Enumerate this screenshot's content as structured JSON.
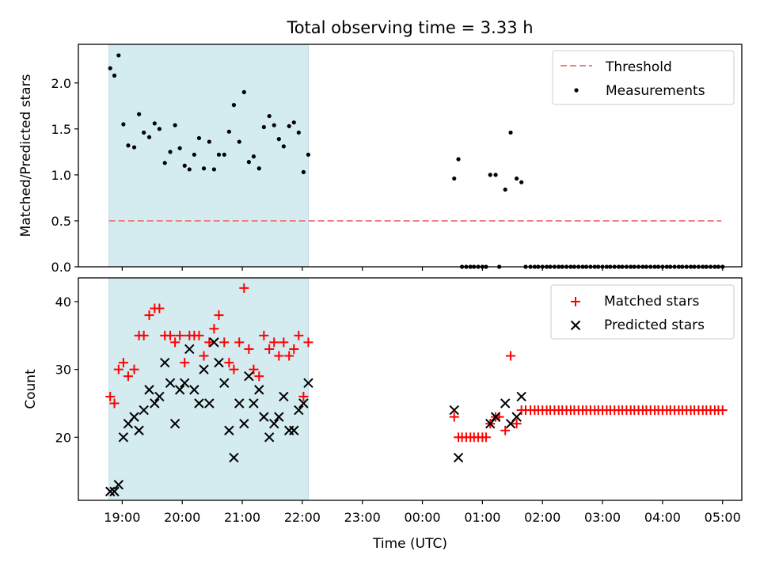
{
  "chart_data": [
    {
      "type": "scatter",
      "title": "Total observing time = 3.33 h",
      "xlabel": "",
      "ylabel": "Matched/Predicted stars",
      "x_unit": "hours since 19:00 UTC",
      "xlim": [
        -0.73,
        10.32
      ],
      "ylim": [
        0.0,
        2.42
      ],
      "yticks": [
        0.0,
        0.5,
        1.0,
        1.5,
        2.0
      ],
      "ytick_labels": [
        "0.0",
        "0.5",
        "1.0",
        "1.5",
        "2.0"
      ],
      "shaded_span": [
        -0.22,
        3.1
      ],
      "shaded_color": "#d4ebf0",
      "legend": {
        "placement": "top-right",
        "entries": [
          "Threshold",
          "Measurements"
        ]
      },
      "threshold": {
        "name": "Threshold",
        "value": 0.5,
        "x_range": [
          -0.22,
          9.98
        ],
        "color": "#f08080"
      },
      "series": [
        {
          "name": "Measurements",
          "color": "#000000",
          "points": [
            [
              -0.2,
              2.16
            ],
            [
              -0.13,
              2.08
            ],
            [
              -0.06,
              2.3
            ],
            [
              0.02,
              1.55
            ],
            [
              0.1,
              1.32
            ],
            [
              0.2,
              1.3
            ],
            [
              0.28,
              1.66
            ],
            [
              0.36,
              1.46
            ],
            [
              0.45,
              1.41
            ],
            [
              0.54,
              1.56
            ],
            [
              0.62,
              1.5
            ],
            [
              0.71,
              1.13
            ],
            [
              0.8,
              1.25
            ],
            [
              0.88,
              1.54
            ],
            [
              0.96,
              1.29
            ],
            [
              1.04,
              1.1
            ],
            [
              1.12,
              1.06
            ],
            [
              1.2,
              1.22
            ],
            [
              1.28,
              1.4
            ],
            [
              1.36,
              1.07
            ],
            [
              1.45,
              1.36
            ],
            [
              1.53,
              1.06
            ],
            [
              1.61,
              1.22
            ],
            [
              1.7,
              1.22
            ],
            [
              1.78,
              1.47
            ],
            [
              1.86,
              1.76
            ],
            [
              1.95,
              1.36
            ],
            [
              2.03,
              1.9
            ],
            [
              2.11,
              1.14
            ],
            [
              2.19,
              1.2
            ],
            [
              2.28,
              1.07
            ],
            [
              2.36,
              1.52
            ],
            [
              2.45,
              1.64
            ],
            [
              2.53,
              1.54
            ],
            [
              2.61,
              1.39
            ],
            [
              2.69,
              1.31
            ],
            [
              2.78,
              1.53
            ],
            [
              2.86,
              1.57
            ],
            [
              2.94,
              1.46
            ],
            [
              3.02,
              1.03
            ],
            [
              3.1,
              1.22
            ],
            [
              5.53,
              0.96
            ],
            [
              5.6,
              1.17
            ],
            [
              5.66,
              0.0
            ],
            [
              5.73,
              0.0
            ],
            [
              5.8,
              0.0
            ],
            [
              5.86,
              0.0
            ],
            [
              5.93,
              0.0
            ],
            [
              6.0,
              0.0
            ],
            [
              6.06,
              0.0
            ],
            [
              6.13,
              1.0
            ],
            [
              6.22,
              1.0
            ],
            [
              6.28,
              0.0
            ],
            [
              6.38,
              0.84
            ],
            [
              6.47,
              1.46
            ],
            [
              6.57,
              0.96
            ],
            [
              6.65,
              0.92
            ],
            [
              6.72,
              0.0
            ],
            [
              6.8,
              0.0
            ],
            [
              6.87,
              0.0
            ],
            [
              6.93,
              0.0
            ],
            [
              7.0,
              0.0
            ],
            [
              7.07,
              0.0
            ],
            [
              7.13,
              0.0
            ],
            [
              7.2,
              0.0
            ],
            [
              7.27,
              0.0
            ],
            [
              7.33,
              0.0
            ],
            [
              7.4,
              0.0
            ],
            [
              7.47,
              0.0
            ],
            [
              7.53,
              0.0
            ],
            [
              7.6,
              0.0
            ],
            [
              7.67,
              0.0
            ],
            [
              7.73,
              0.0
            ],
            [
              7.8,
              0.0
            ],
            [
              7.87,
              0.0
            ],
            [
              7.93,
              0.0
            ],
            [
              8.0,
              0.0
            ],
            [
              8.07,
              0.0
            ],
            [
              8.13,
              0.0
            ],
            [
              8.2,
              0.0
            ],
            [
              8.27,
              0.0
            ],
            [
              8.33,
              0.0
            ],
            [
              8.4,
              0.0
            ],
            [
              8.47,
              0.0
            ],
            [
              8.53,
              0.0
            ],
            [
              8.6,
              0.0
            ],
            [
              8.67,
              0.0
            ],
            [
              8.73,
              0.0
            ],
            [
              8.8,
              0.0
            ],
            [
              8.87,
              0.0
            ],
            [
              8.93,
              0.0
            ],
            [
              9.0,
              0.0
            ],
            [
              9.07,
              0.0
            ],
            [
              9.13,
              0.0
            ],
            [
              9.2,
              0.0
            ],
            [
              9.27,
              0.0
            ],
            [
              9.33,
              0.0
            ],
            [
              9.4,
              0.0
            ],
            [
              9.47,
              0.0
            ],
            [
              9.53,
              0.0
            ],
            [
              9.6,
              0.0
            ],
            [
              9.67,
              0.0
            ],
            [
              9.73,
              0.0
            ],
            [
              9.8,
              0.0
            ],
            [
              9.87,
              0.0
            ],
            [
              9.93,
              0.0
            ],
            [
              10.0,
              0.0
            ]
          ]
        }
      ]
    },
    {
      "type": "scatter",
      "title": "",
      "xlabel": "Time (UTC)",
      "ylabel": "Count",
      "x_unit": "hours since 19:00 UTC",
      "xlim": [
        -0.73,
        10.32
      ],
      "ylim": [
        10.7,
        43.5
      ],
      "yticks": [
        20,
        30,
        40
      ],
      "ytick_labels": [
        "20",
        "30",
        "40"
      ],
      "xticks": [
        0,
        1,
        2,
        3,
        4,
        5,
        6,
        7,
        8,
        9,
        10
      ],
      "xtick_labels": [
        "19:00",
        "20:00",
        "21:00",
        "22:00",
        "23:00",
        "00:00",
        "01:00",
        "02:00",
        "03:00",
        "04:00",
        "05:00"
      ],
      "shaded_span": [
        -0.22,
        3.1
      ],
      "shaded_color": "#d4ebf0",
      "legend": {
        "placement": "top-right",
        "entries": [
          "Matched stars",
          "Predicted stars"
        ]
      },
      "series": [
        {
          "name": "Matched stars",
          "marker": "plus",
          "color": "#ff0000",
          "points": [
            [
              -0.2,
              26
            ],
            [
              -0.13,
              25
            ],
            [
              -0.06,
              30
            ],
            [
              0.02,
              31
            ],
            [
              0.1,
              29
            ],
            [
              0.2,
              30
            ],
            [
              0.28,
              35
            ],
            [
              0.36,
              35
            ],
            [
              0.45,
              38
            ],
            [
              0.54,
              39
            ],
            [
              0.62,
              39
            ],
            [
              0.71,
              35
            ],
            [
              0.8,
              35
            ],
            [
              0.88,
              34
            ],
            [
              0.96,
              35
            ],
            [
              1.04,
              31
            ],
            [
              1.12,
              35
            ],
            [
              1.2,
              35
            ],
            [
              1.28,
              35
            ],
            [
              1.36,
              32
            ],
            [
              1.45,
              34
            ],
            [
              1.53,
              36
            ],
            [
              1.61,
              38
            ],
            [
              1.7,
              34
            ],
            [
              1.78,
              31
            ],
            [
              1.86,
              30
            ],
            [
              1.95,
              34
            ],
            [
              2.03,
              42
            ],
            [
              2.11,
              33
            ],
            [
              2.19,
              30
            ],
            [
              2.28,
              29
            ],
            [
              2.36,
              35
            ],
            [
              2.45,
              33
            ],
            [
              2.53,
              34
            ],
            [
              2.61,
              32
            ],
            [
              2.69,
              34
            ],
            [
              2.78,
              32
            ],
            [
              2.86,
              33
            ],
            [
              2.94,
              35
            ],
            [
              3.02,
              26
            ],
            [
              3.1,
              34
            ],
            [
              5.53,
              23
            ],
            [
              5.6,
              20
            ],
            [
              5.66,
              20
            ],
            [
              5.73,
              20
            ],
            [
              5.8,
              20
            ],
            [
              5.86,
              20
            ],
            [
              5.93,
              20
            ],
            [
              6.0,
              20
            ],
            [
              6.06,
              20
            ],
            [
              6.13,
              22
            ],
            [
              6.22,
              23
            ],
            [
              6.28,
              23
            ],
            [
              6.38,
              21
            ],
            [
              6.47,
              32
            ],
            [
              6.57,
              22
            ],
            [
              6.65,
              24
            ],
            [
              6.72,
              24
            ],
            [
              6.8,
              24
            ],
            [
              6.87,
              24
            ],
            [
              6.93,
              24
            ],
            [
              7.0,
              24
            ],
            [
              7.07,
              24
            ],
            [
              7.13,
              24
            ],
            [
              7.2,
              24
            ],
            [
              7.27,
              24
            ],
            [
              7.33,
              24
            ],
            [
              7.4,
              24
            ],
            [
              7.47,
              24
            ],
            [
              7.53,
              24
            ],
            [
              7.6,
              24
            ],
            [
              7.67,
              24
            ],
            [
              7.73,
              24
            ],
            [
              7.8,
              24
            ],
            [
              7.87,
              24
            ],
            [
              7.93,
              24
            ],
            [
              8.0,
              24
            ],
            [
              8.07,
              24
            ],
            [
              8.13,
              24
            ],
            [
              8.2,
              24
            ],
            [
              8.27,
              24
            ],
            [
              8.33,
              24
            ],
            [
              8.4,
              24
            ],
            [
              8.47,
              24
            ],
            [
              8.53,
              24
            ],
            [
              8.6,
              24
            ],
            [
              8.67,
              24
            ],
            [
              8.73,
              24
            ],
            [
              8.8,
              24
            ],
            [
              8.87,
              24
            ],
            [
              8.93,
              24
            ],
            [
              9.0,
              24
            ],
            [
              9.07,
              24
            ],
            [
              9.13,
              24
            ],
            [
              9.2,
              24
            ],
            [
              9.27,
              24
            ],
            [
              9.33,
              24
            ],
            [
              9.4,
              24
            ],
            [
              9.47,
              24
            ],
            [
              9.53,
              24
            ],
            [
              9.6,
              24
            ],
            [
              9.67,
              24
            ],
            [
              9.73,
              24
            ],
            [
              9.8,
              24
            ],
            [
              9.87,
              24
            ],
            [
              9.93,
              24
            ],
            [
              10.0,
              24
            ]
          ]
        },
        {
          "name": "Predicted stars",
          "marker": "x",
          "color": "#000000",
          "points": [
            [
              -0.2,
              12
            ],
            [
              -0.13,
              12
            ],
            [
              -0.06,
              13
            ],
            [
              0.02,
              20
            ],
            [
              0.1,
              22
            ],
            [
              0.2,
              23
            ],
            [
              0.28,
              21
            ],
            [
              0.36,
              24
            ],
            [
              0.45,
              27
            ],
            [
              0.54,
              25
            ],
            [
              0.62,
              26
            ],
            [
              0.71,
              31
            ],
            [
              0.8,
              28
            ],
            [
              0.88,
              22
            ],
            [
              0.96,
              27
            ],
            [
              1.04,
              28
            ],
            [
              1.12,
              33
            ],
            [
              1.2,
              27
            ],
            [
              1.28,
              25
            ],
            [
              1.36,
              30
            ],
            [
              1.45,
              25
            ],
            [
              1.53,
              34
            ],
            [
              1.61,
              31
            ],
            [
              1.7,
              28
            ],
            [
              1.78,
              21
            ],
            [
              1.86,
              17
            ],
            [
              1.95,
              25
            ],
            [
              2.03,
              22
            ],
            [
              2.11,
              29
            ],
            [
              2.19,
              25
            ],
            [
              2.28,
              27
            ],
            [
              2.36,
              23
            ],
            [
              2.45,
              20
            ],
            [
              2.53,
              22
            ],
            [
              2.61,
              23
            ],
            [
              2.69,
              26
            ],
            [
              2.78,
              21
            ],
            [
              2.86,
              21
            ],
            [
              2.94,
              24
            ],
            [
              3.02,
              25
            ],
            [
              3.1,
              28
            ],
            [
              5.53,
              24
            ],
            [
              5.6,
              17
            ],
            [
              6.13,
              22
            ],
            [
              6.22,
              23
            ],
            [
              6.38,
              25
            ],
            [
              6.47,
              22
            ],
            [
              6.57,
              23
            ],
            [
              6.65,
              26
            ]
          ]
        }
      ]
    }
  ]
}
